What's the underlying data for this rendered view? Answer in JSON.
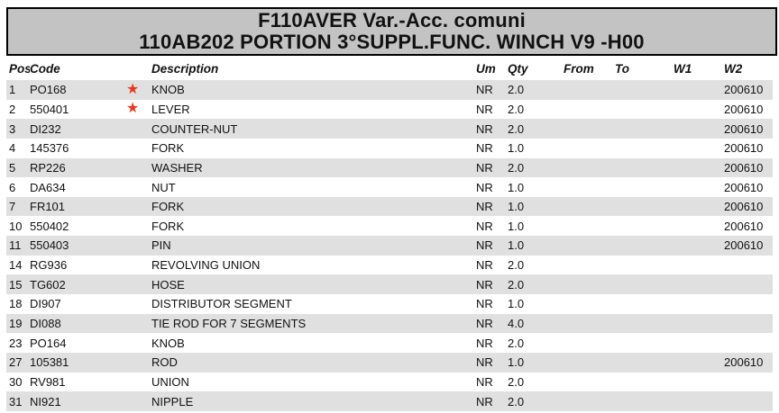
{
  "document": {
    "title_line1": "F110AVER Var.-Acc. comuni",
    "title_line2": "110AB202 PORTION 3°SUPPL.FUNC. WINCH V9 -H00"
  },
  "table": {
    "headers": {
      "pos": "Pos",
      "code": "Code",
      "description": "Description",
      "um": "Um",
      "qty": "Qty",
      "from": "From",
      "to": "To",
      "w1": "W1",
      "w2": "W2"
    },
    "rows": [
      {
        "pos": "1",
        "code": "PO168",
        "star": true,
        "description": "KNOB",
        "um": "NR",
        "qty": "2.0",
        "from": "",
        "to": "",
        "w1": "",
        "w2": "200610"
      },
      {
        "pos": "2",
        "code": "550401",
        "star": true,
        "description": "LEVER",
        "um": "NR",
        "qty": "2.0",
        "from": "",
        "to": "",
        "w1": "",
        "w2": "200610"
      },
      {
        "pos": "3",
        "code": "DI232",
        "star": false,
        "description": "COUNTER-NUT",
        "um": "NR",
        "qty": "2.0",
        "from": "",
        "to": "",
        "w1": "",
        "w2": "200610"
      },
      {
        "pos": "4",
        "code": "145376",
        "star": false,
        "description": "FORK",
        "um": "NR",
        "qty": "1.0",
        "from": "",
        "to": "",
        "w1": "",
        "w2": "200610"
      },
      {
        "pos": "5",
        "code": "RP226",
        "star": false,
        "description": "WASHER",
        "um": "NR",
        "qty": "2.0",
        "from": "",
        "to": "",
        "w1": "",
        "w2": "200610"
      },
      {
        "pos": "6",
        "code": "DA634",
        "star": false,
        "description": "NUT",
        "um": "NR",
        "qty": "1.0",
        "from": "",
        "to": "",
        "w1": "",
        "w2": "200610"
      },
      {
        "pos": "7",
        "code": "FR101",
        "star": false,
        "description": "FORK",
        "um": "NR",
        "qty": "1.0",
        "from": "",
        "to": "",
        "w1": "",
        "w2": "200610"
      },
      {
        "pos": "10",
        "code": "550402",
        "star": false,
        "description": "FORK",
        "um": "NR",
        "qty": "1.0",
        "from": "",
        "to": "",
        "w1": "",
        "w2": "200610"
      },
      {
        "pos": "11",
        "code": "550403",
        "star": false,
        "description": "PIN",
        "um": "NR",
        "qty": "1.0",
        "from": "",
        "to": "",
        "w1": "",
        "w2": "200610"
      },
      {
        "pos": "14",
        "code": "RG936",
        "star": false,
        "description": "REVOLVING UNION",
        "um": "NR",
        "qty": "2.0",
        "from": "",
        "to": "",
        "w1": "",
        "w2": ""
      },
      {
        "pos": "15",
        "code": "TG602",
        "star": false,
        "description": "HOSE",
        "um": "NR",
        "qty": "2.0",
        "from": "",
        "to": "",
        "w1": "",
        "w2": ""
      },
      {
        "pos": "18",
        "code": "DI907",
        "star": false,
        "description": "DISTRIBUTOR SEGMENT",
        "um": "NR",
        "qty": "1.0",
        "from": "",
        "to": "",
        "w1": "",
        "w2": ""
      },
      {
        "pos": "19",
        "code": "DI088",
        "star": false,
        "description": "TIE ROD FOR 7 SEGMENTS",
        "um": "NR",
        "qty": "4.0",
        "from": "",
        "to": "",
        "w1": "",
        "w2": ""
      },
      {
        "pos": "23",
        "code": "PO164",
        "star": false,
        "description": "KNOB",
        "um": "NR",
        "qty": "2.0",
        "from": "",
        "to": "",
        "w1": "",
        "w2": ""
      },
      {
        "pos": "27",
        "code": "105381",
        "star": false,
        "description": "ROD",
        "um": "NR",
        "qty": "1.0",
        "from": "",
        "to": "",
        "w1": "",
        "w2": "200610"
      },
      {
        "pos": "30",
        "code": "RV981",
        "star": false,
        "description": "UNION",
        "um": "NR",
        "qty": "2.0",
        "from": "",
        "to": "",
        "w1": "",
        "w2": ""
      },
      {
        "pos": "31",
        "code": "NI921",
        "star": false,
        "description": "NIPPLE",
        "um": "NR",
        "qty": "2.0",
        "from": "",
        "to": "",
        "w1": "",
        "w2": ""
      }
    ]
  },
  "icons": {
    "star_glyph": "★"
  },
  "colors": {
    "star": "#e8391d",
    "row_stripe": "#e0e0e0",
    "title_bg": "#c3c3c3",
    "border": "#000000"
  }
}
